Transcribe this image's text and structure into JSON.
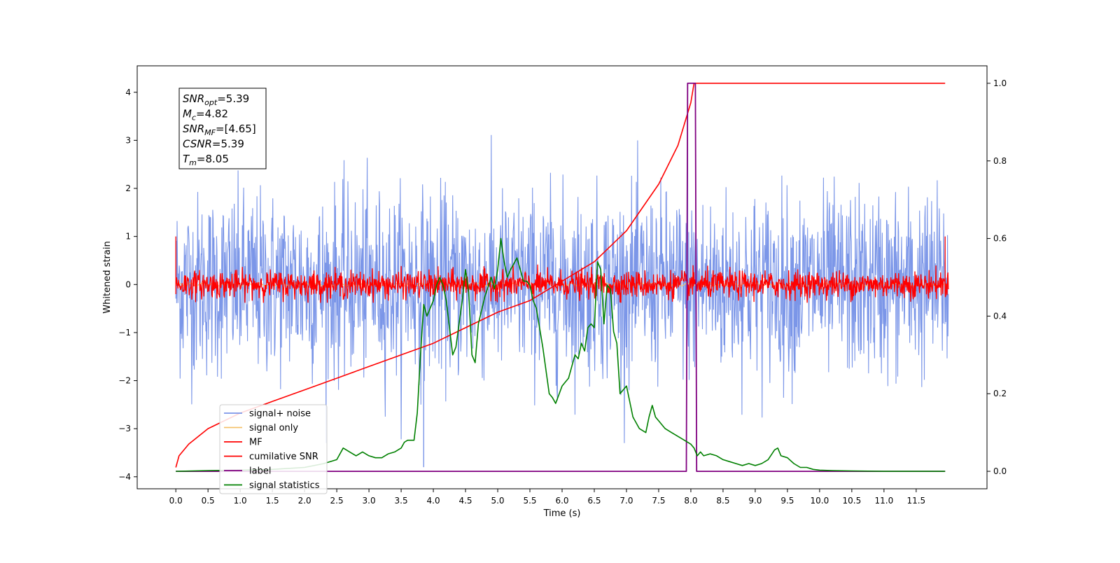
{
  "chart_data": {
    "type": "line",
    "xlabel": "Time (s)",
    "ylabel": "Whitened strain",
    "xlim": [
      -0.6,
      12.6
    ],
    "ylim": [
      -4.25,
      4.55
    ],
    "y2lim": [
      -0.045,
      1.045
    ],
    "x_ticks": [
      0.0,
      0.5,
      1.0,
      1.5,
      2.0,
      2.5,
      3.0,
      3.5,
      4.0,
      4.5,
      5.0,
      5.5,
      6.0,
      6.5,
      7.0,
      7.5,
      8.0,
      8.5,
      9.0,
      9.5,
      10.0,
      10.5,
      11.0,
      11.5
    ],
    "x_tick_labels": [
      "0.0",
      "0.5",
      "1.0",
      "1.5",
      "2.0",
      "2.5",
      "3.0",
      "3.5",
      "4.0",
      "4.5",
      "5.0",
      "5.5",
      "6.0",
      "6.5",
      "7.0",
      "7.5",
      "8.0",
      "8.5",
      "9.0",
      "9.5",
      "10.0",
      "10.5",
      "11.0",
      "11.5"
    ],
    "y_ticks": [
      -4,
      -3,
      -2,
      -1,
      0,
      1,
      2,
      3,
      4
    ],
    "y_tick_labels": [
      "−4",
      "−3",
      "−2",
      "−1",
      "0",
      "1",
      "2",
      "3",
      "4"
    ],
    "y2_ticks": [
      0.0,
      0.2,
      0.4,
      0.6,
      0.8,
      1.0
    ],
    "y2_tick_labels": [
      "0.0",
      "0.2",
      "0.4",
      "0.6",
      "0.8",
      "1.0"
    ],
    "annotation": [
      {
        "base": "SNR",
        "sub": "opt",
        "rest": "=5.39"
      },
      {
        "base": "M",
        "sub": "c",
        "rest": "=4.82"
      },
      {
        "base": "SNR",
        "sub": "MF",
        "rest": "=[4.65]"
      },
      {
        "base": "CSNR",
        "sub": "",
        "rest": "=5.39"
      },
      {
        "base": "T",
        "sub": "m",
        "rest": "=8.05"
      }
    ],
    "legend_position": "lower-left",
    "series": [
      {
        "name": "signal+ noise",
        "color": "#7b96e8",
        "axis": "left",
        "kind": "noise",
        "x_range": [
          0,
          12
        ],
        "approx_std": 0.95,
        "note_peaks": [
          [
            7.95,
            4.2
          ],
          [
            3.85,
            -3.8
          ]
        ]
      },
      {
        "name": "signal only",
        "color": "#f5c26b",
        "axis": "left",
        "kind": "near-zero",
        "x_range": [
          0,
          12
        ]
      },
      {
        "name": "MF",
        "color": "#ff0000",
        "axis": "left",
        "kind": "noise",
        "x_range": [
          0,
          12
        ],
        "approx_std": 0.14
      },
      {
        "name": "cumilative SNR",
        "color": "#ff0000",
        "axis": "right",
        "x": [
          0.0,
          0.05,
          0.2,
          0.5,
          1.0,
          1.5,
          2.0,
          2.5,
          3.0,
          3.5,
          4.0,
          4.5,
          5.0,
          5.5,
          6.0,
          6.5,
          7.0,
          7.5,
          7.8,
          8.0,
          8.05,
          11.95
        ],
        "y": [
          0.01,
          0.04,
          0.07,
          0.11,
          0.15,
          0.18,
          0.21,
          0.24,
          0.27,
          0.3,
          0.33,
          0.37,
          0.41,
          0.44,
          0.49,
          0.54,
          0.62,
          0.74,
          0.84,
          0.95,
          1.0,
          1.0
        ]
      },
      {
        "name": "label",
        "color": "#800080",
        "axis": "right",
        "x": [
          0.0,
          7.93,
          7.95,
          8.07,
          8.09,
          11.95
        ],
        "y": [
          0.0,
          0.0,
          1.0,
          1.0,
          0.0,
          0.0
        ]
      },
      {
        "name": "signal statistics",
        "color": "#008000",
        "axis": "right",
        "x": [
          0.0,
          0.5,
          1.0,
          1.5,
          2.0,
          2.3,
          2.5,
          2.6,
          2.7,
          2.8,
          2.9,
          3.0,
          3.1,
          3.2,
          3.3,
          3.4,
          3.5,
          3.55,
          3.6,
          3.7,
          3.75,
          3.8,
          3.85,
          3.9,
          4.0,
          4.05,
          4.1,
          4.15,
          4.2,
          4.3,
          4.35,
          4.4,
          4.45,
          4.5,
          4.55,
          4.6,
          4.65,
          4.7,
          4.8,
          4.9,
          4.95,
          5.0,
          5.05,
          5.1,
          5.15,
          5.2,
          5.3,
          5.35,
          5.4,
          5.45,
          5.5,
          5.55,
          5.6,
          5.7,
          5.8,
          5.85,
          5.9,
          6.0,
          6.05,
          6.1,
          6.2,
          6.25,
          6.3,
          6.35,
          6.4,
          6.45,
          6.5,
          6.55,
          6.6,
          6.65,
          6.7,
          6.75,
          6.8,
          6.85,
          6.9,
          7.0,
          7.1,
          7.2,
          7.3,
          7.35,
          7.4,
          7.45,
          7.5,
          7.6,
          7.7,
          7.8,
          7.9,
          8.0,
          8.05,
          8.1,
          8.15,
          8.2,
          8.3,
          8.4,
          8.5,
          8.6,
          8.7,
          8.8,
          8.9,
          9.0,
          9.1,
          9.2,
          9.3,
          9.35,
          9.4,
          9.5,
          9.6,
          9.7,
          9.8,
          9.9,
          10.0,
          10.2,
          10.5,
          11.0,
          11.95
        ],
        "y": [
          0.0,
          0.002,
          0.003,
          0.005,
          0.01,
          0.02,
          0.03,
          0.06,
          0.05,
          0.04,
          0.05,
          0.04,
          0.035,
          0.035,
          0.045,
          0.05,
          0.06,
          0.075,
          0.08,
          0.08,
          0.15,
          0.3,
          0.43,
          0.4,
          0.44,
          0.48,
          0.5,
          0.48,
          0.44,
          0.3,
          0.32,
          0.38,
          0.44,
          0.52,
          0.46,
          0.3,
          0.28,
          0.38,
          0.45,
          0.5,
          0.47,
          0.52,
          0.6,
          0.54,
          0.5,
          0.52,
          0.55,
          0.52,
          0.49,
          0.49,
          0.48,
          0.44,
          0.42,
          0.32,
          0.2,
          0.19,
          0.175,
          0.22,
          0.23,
          0.24,
          0.3,
          0.29,
          0.33,
          0.31,
          0.37,
          0.38,
          0.37,
          0.54,
          0.52,
          0.38,
          0.48,
          0.47,
          0.36,
          0.33,
          0.2,
          0.22,
          0.14,
          0.11,
          0.1,
          0.14,
          0.17,
          0.14,
          0.13,
          0.11,
          0.1,
          0.09,
          0.08,
          0.07,
          0.06,
          0.04,
          0.05,
          0.04,
          0.045,
          0.04,
          0.03,
          0.025,
          0.02,
          0.015,
          0.02,
          0.015,
          0.02,
          0.03,
          0.055,
          0.06,
          0.04,
          0.035,
          0.02,
          0.01,
          0.01,
          0.005,
          0.003,
          0.002,
          0.001,
          0.0,
          0.0
        ]
      }
    ]
  }
}
